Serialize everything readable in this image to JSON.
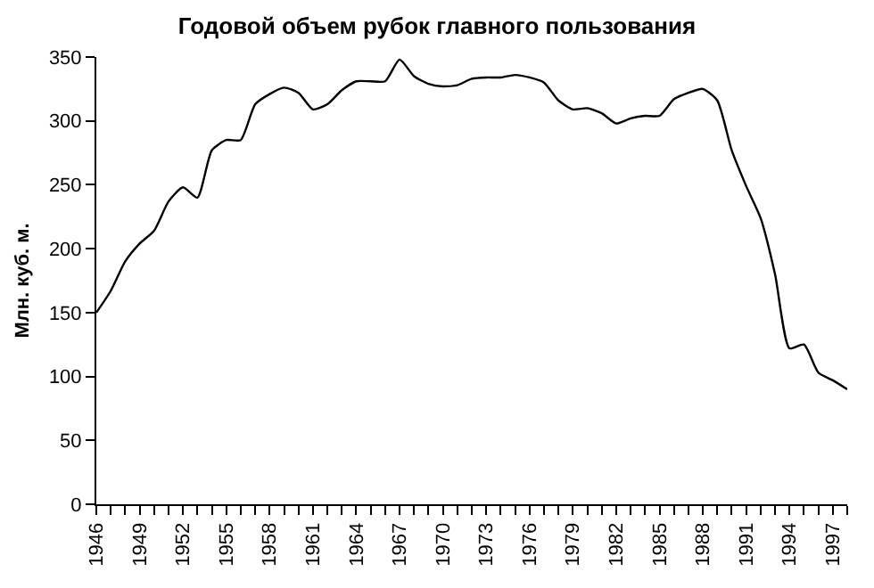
{
  "chart_data": {
    "type": "line",
    "title": "Годовой объем рубок главного пользования",
    "ylabel": "Млн. куб. м.",
    "x": [
      1946,
      1947,
      1948,
      1949,
      1950,
      1951,
      1952,
      1953,
      1954,
      1955,
      1956,
      1957,
      1958,
      1959,
      1960,
      1961,
      1962,
      1963,
      1964,
      1965,
      1966,
      1967,
      1968,
      1969,
      1970,
      1971,
      1972,
      1973,
      1974,
      1975,
      1976,
      1977,
      1978,
      1979,
      1980,
      1981,
      1982,
      1983,
      1984,
      1985,
      1986,
      1987,
      1988,
      1989,
      1990,
      1991,
      1992,
      1993,
      1994,
      1995,
      1996,
      1997,
      1998
    ],
    "series": [
      {
        "color": "#000000",
        "values": [
          150,
          167,
          190,
          204,
          214,
          237,
          248,
          240,
          277,
          285,
          285,
          313,
          321,
          326,
          322,
          309,
          313,
          324,
          331,
          331,
          331,
          348,
          335,
          329,
          327,
          328,
          333,
          334,
          334,
          336,
          334,
          330,
          316,
          309,
          310,
          306,
          298,
          302,
          304,
          304,
          317,
          322,
          325,
          316,
          277,
          249,
          224,
          180,
          122,
          125,
          103,
          97,
          90
        ]
      }
    ],
    "xlim": [
      1946,
      1998
    ],
    "ylim": [
      0,
      350
    ],
    "yticks": [
      0,
      50,
      100,
      150,
      200,
      250,
      300,
      350
    ],
    "xticks": [
      1946,
      {
        "value": 1947,
        "label": null
      },
      {
        "value": 1948,
        "label": null
      },
      1949,
      {
        "value": 1950,
        "label": null
      },
      {
        "value": 1951,
        "label": null
      },
      1952,
      {
        "value": 1953,
        "label": null
      },
      {
        "value": 1954,
        "label": null
      },
      1955,
      {
        "value": 1956,
        "label": null
      },
      {
        "value": 1957,
        "label": null
      },
      1958,
      {
        "value": 1959,
        "label": null
      },
      {
        "value": 1960,
        "label": null
      },
      1961,
      {
        "value": 1962,
        "label": null
      },
      {
        "value": 1963,
        "label": null
      },
      1964,
      {
        "value": 1965,
        "label": null
      },
      {
        "value": 1966,
        "label": null
      },
      1967,
      {
        "value": 1968,
        "label": null
      },
      {
        "value": 1969,
        "label": null
      },
      1970,
      {
        "value": 1971,
        "label": null
      },
      {
        "value": 1972,
        "label": null
      },
      1973,
      {
        "value": 1974,
        "label": null
      },
      {
        "value": 1975,
        "label": null
      },
      1976,
      {
        "value": 1977,
        "label": null
      },
      {
        "value": 1978,
        "label": null
      },
      1979,
      {
        "value": 1980,
        "label": null
      },
      {
        "value": 1981,
        "label": null
      },
      1982,
      {
        "value": 1983,
        "label": null
      },
      {
        "value": 1984,
        "label": null
      },
      1985,
      {
        "value": 1986,
        "label": null
      },
      {
        "value": 1987,
        "label": null
      },
      1988,
      {
        "value": 1989,
        "label": null
      },
      {
        "value": 1990,
        "label": null
      },
      1991,
      {
        "value": 1992,
        "label": null
      },
      {
        "value": 1993,
        "label": null
      },
      1994,
      {
        "value": 1995,
        "label": null
      },
      {
        "value": 1996,
        "label": null
      },
      1997,
      {
        "value": 1998,
        "label": null
      }
    ]
  }
}
